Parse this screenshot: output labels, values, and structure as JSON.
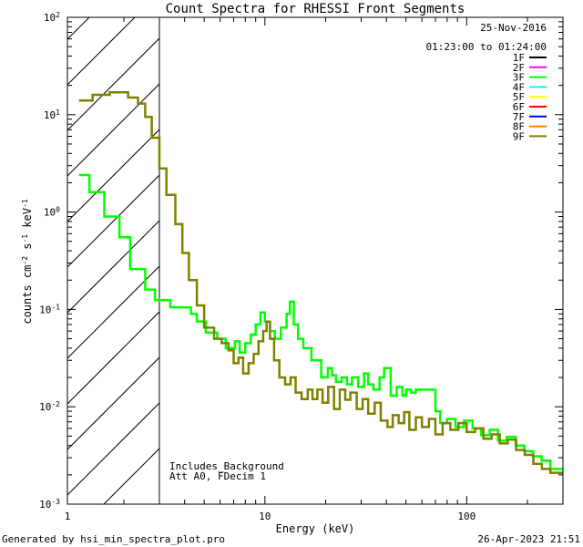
{
  "chart_data": {
    "type": "line",
    "title": "Count Spectra for RHESSI Front Segments",
    "xlabel": "Energy (keV)",
    "ylabel": "counts cm",
    "ylabel_sup1": "-2",
    "ylabel_mid": " s",
    "ylabel_sup2": "-1",
    "ylabel_end": " keV",
    "ylabel_sup3": "-1",
    "xscale": "log",
    "yscale": "log",
    "xlim": [
      1.05,
      300
    ],
    "ylim": [
      0.001,
      100
    ],
    "x_ticks": [
      {
        "value": 1,
        "label": "1"
      },
      {
        "value": 10,
        "label": "10"
      },
      {
        "value": 100,
        "label": "100"
      }
    ],
    "y_ticks": [
      {
        "exp": -3,
        "label": "10",
        "sup": "-3"
      },
      {
        "exp": -2,
        "label": "10",
        "sup": "-2"
      },
      {
        "exp": -1,
        "label": "10",
        "sup": "-1"
      },
      {
        "exp": 0,
        "label": "10",
        "sup": "0"
      },
      {
        "exp": 1,
        "label": "10",
        "sup": "1"
      },
      {
        "exp": 2,
        "label": "10",
        "sup": "2"
      }
    ],
    "shaded_region_max_energy": 3.0,
    "date": "25-Nov-2016",
    "time_range": "01:23:00 to 01:24:00",
    "legend": [
      {
        "name": "1F",
        "color": "#000000"
      },
      {
        "name": "2F",
        "color": "#ff00ff"
      },
      {
        "name": "3F",
        "color": "#00ff00"
      },
      {
        "name": "4F",
        "color": "#00ffff"
      },
      {
        "name": "5F",
        "color": "#ffff00"
      },
      {
        "name": "6F",
        "color": "#ff0000"
      },
      {
        "name": "7F",
        "color": "#0000ff"
      },
      {
        "name": "8F",
        "color": "#ff8000"
      },
      {
        "name": "9F",
        "color": "#808000"
      }
    ],
    "annotations": [
      "Includes_Background",
      "Att A0, FDecim 1"
    ],
    "series": [
      {
        "name": "3F",
        "color": "#00ff00",
        "points": [
          [
            1.2,
            2.4
          ],
          [
            1.35,
            2.4
          ],
          [
            1.35,
            1.6
          ],
          [
            1.6,
            1.6
          ],
          [
            1.6,
            0.9
          ],
          [
            1.9,
            0.9
          ],
          [
            1.9,
            0.55
          ],
          [
            2.15,
            0.55
          ],
          [
            2.15,
            0.26
          ],
          [
            2.55,
            0.26
          ],
          [
            2.55,
            0.16
          ],
          [
            2.85,
            0.16
          ],
          [
            2.85,
            0.125
          ],
          [
            3.4,
            0.125
          ],
          [
            3.4,
            0.105
          ],
          [
            4.3,
            0.105
          ],
          [
            4.3,
            0.09
          ],
          [
            4.6,
            0.09
          ],
          [
            4.6,
            0.075
          ],
          [
            5.1,
            0.075
          ],
          [
            5.1,
            0.058
          ],
          [
            5.8,
            0.058
          ],
          [
            5.8,
            0.05
          ],
          [
            6.4,
            0.05
          ],
          [
            6.4,
            0.04
          ],
          [
            7.1,
            0.04
          ],
          [
            7.1,
            0.047
          ],
          [
            7.5,
            0.047
          ],
          [
            7.5,
            0.036
          ],
          [
            8.0,
            0.036
          ],
          [
            8.0,
            0.045
          ],
          [
            8.5,
            0.045
          ],
          [
            8.5,
            0.055
          ],
          [
            9.0,
            0.055
          ],
          [
            9.0,
            0.07
          ],
          [
            9.5,
            0.07
          ],
          [
            9.5,
            0.093
          ],
          [
            10.0,
            0.093
          ],
          [
            10.0,
            0.075
          ],
          [
            10.6,
            0.075
          ],
          [
            10.6,
            0.06
          ],
          [
            11.2,
            0.06
          ],
          [
            11.2,
            0.05
          ],
          [
            12.0,
            0.05
          ],
          [
            12.0,
            0.065
          ],
          [
            12.8,
            0.065
          ],
          [
            12.8,
            0.09
          ],
          [
            13.3,
            0.09
          ],
          [
            13.3,
            0.12
          ],
          [
            13.9,
            0.12
          ],
          [
            13.9,
            0.07
          ],
          [
            14.6,
            0.07
          ],
          [
            14.6,
            0.05
          ],
          [
            15.5,
            0.05
          ],
          [
            15.5,
            0.04
          ],
          [
            17.0,
            0.04
          ],
          [
            17.0,
            0.03
          ],
          [
            19.0,
            0.03
          ],
          [
            19.0,
            0.02
          ],
          [
            20.5,
            0.02
          ],
          [
            20.5,
            0.025
          ],
          [
            21.5,
            0.025
          ],
          [
            21.5,
            0.021
          ],
          [
            22.5,
            0.021
          ],
          [
            22.5,
            0.018
          ],
          [
            24.0,
            0.018
          ],
          [
            24.0,
            0.02
          ],
          [
            25.5,
            0.02
          ],
          [
            25.5,
            0.017
          ],
          [
            27.0,
            0.017
          ],
          [
            27.0,
            0.02
          ],
          [
            29.0,
            0.02
          ],
          [
            29.0,
            0.016
          ],
          [
            31.0,
            0.016
          ],
          [
            31.0,
            0.022
          ],
          [
            32.5,
            0.022
          ],
          [
            32.5,
            0.017
          ],
          [
            34.5,
            0.017
          ],
          [
            34.5,
            0.015
          ],
          [
            37.0,
            0.015
          ],
          [
            37.0,
            0.02
          ],
          [
            39.0,
            0.02
          ],
          [
            39.0,
            0.025
          ],
          [
            42.0,
            0.025
          ],
          [
            42.0,
            0.013
          ],
          [
            45.0,
            0.013
          ],
          [
            45.0,
            0.016
          ],
          [
            48.0,
            0.016
          ],
          [
            48.0,
            0.013
          ],
          [
            50.0,
            0.013
          ],
          [
            50.0,
            0.015
          ],
          [
            53.0,
            0.015
          ],
          [
            53.0,
            0.014
          ],
          [
            56.0,
            0.014
          ],
          [
            56.0,
            0.015
          ],
          [
            70.0,
            0.015
          ],
          [
            70.0,
            0.009
          ],
          [
            74.0,
            0.009
          ],
          [
            74.0,
            0.0068
          ],
          [
            80.0,
            0.0068
          ],
          [
            80.0,
            0.0075
          ],
          [
            88.0,
            0.0075
          ],
          [
            88.0,
            0.0062
          ],
          [
            97.0,
            0.0062
          ],
          [
            97.0,
            0.0072
          ],
          [
            107.0,
            0.0072
          ],
          [
            107.0,
            0.006
          ],
          [
            118.0,
            0.006
          ],
          [
            118.0,
            0.0051
          ],
          [
            130.0,
            0.0051
          ],
          [
            130.0,
            0.0058
          ],
          [
            143.0,
            0.0058
          ],
          [
            143.0,
            0.0045
          ],
          [
            158.0,
            0.0045
          ],
          [
            158.0,
            0.0049
          ],
          [
            175.0,
            0.0049
          ],
          [
            175.0,
            0.004
          ],
          [
            193.0,
            0.004
          ],
          [
            193.0,
            0.0035
          ],
          [
            213.0,
            0.0035
          ],
          [
            213.0,
            0.0031
          ],
          [
            235.0,
            0.0031
          ],
          [
            235.0,
            0.0028
          ],
          [
            260.0,
            0.0028
          ],
          [
            260.0,
            0.0023
          ],
          [
            300.0,
            0.0023
          ]
        ]
      },
      {
        "name": "9F",
        "color": "#808000",
        "points": [
          [
            1.2,
            14.0
          ],
          [
            1.4,
            14.0
          ],
          [
            1.4,
            16.0
          ],
          [
            1.7,
            16.0
          ],
          [
            1.7,
            17.0
          ],
          [
            2.1,
            17.0
          ],
          [
            2.1,
            15.0
          ],
          [
            2.35,
            15.0
          ],
          [
            2.35,
            13.0
          ],
          [
            2.55,
            13.0
          ],
          [
            2.55,
            9.5
          ],
          [
            2.75,
            9.5
          ],
          [
            2.75,
            5.8
          ],
          [
            3.0,
            5.8
          ],
          [
            3.0,
            2.8
          ],
          [
            3.25,
            2.8
          ],
          [
            3.25,
            1.5
          ],
          [
            3.6,
            1.5
          ],
          [
            3.6,
            0.75
          ],
          [
            3.9,
            0.75
          ],
          [
            3.9,
            0.38
          ],
          [
            4.2,
            0.38
          ],
          [
            4.2,
            0.2
          ],
          [
            4.6,
            0.2
          ],
          [
            4.6,
            0.11
          ],
          [
            5.0,
            0.11
          ],
          [
            5.0,
            0.065
          ],
          [
            5.6,
            0.065
          ],
          [
            5.6,
            0.05
          ],
          [
            6.1,
            0.05
          ],
          [
            6.1,
            0.045
          ],
          [
            6.6,
            0.045
          ],
          [
            6.6,
            0.038
          ],
          [
            7.0,
            0.038
          ],
          [
            7.0,
            0.028
          ],
          [
            7.4,
            0.028
          ],
          [
            7.4,
            0.032
          ],
          [
            7.8,
            0.032
          ],
          [
            7.8,
            0.022
          ],
          [
            8.3,
            0.022
          ],
          [
            8.3,
            0.028
          ],
          [
            8.8,
            0.028
          ],
          [
            8.8,
            0.035
          ],
          [
            9.3,
            0.035
          ],
          [
            9.3,
            0.047
          ],
          [
            9.8,
            0.047
          ],
          [
            9.8,
            0.06
          ],
          [
            10.2,
            0.06
          ],
          [
            10.2,
            0.075
          ],
          [
            10.6,
            0.075
          ],
          [
            10.6,
            0.05
          ],
          [
            11.1,
            0.05
          ],
          [
            11.1,
            0.03
          ],
          [
            11.8,
            0.03
          ],
          [
            11.8,
            0.02
          ],
          [
            12.6,
            0.02
          ],
          [
            12.6,
            0.017
          ],
          [
            13.4,
            0.017
          ],
          [
            13.4,
            0.02
          ],
          [
            14.2,
            0.02
          ],
          [
            14.2,
            0.014
          ],
          [
            15.2,
            0.014
          ],
          [
            15.2,
            0.012
          ],
          [
            16.3,
            0.012
          ],
          [
            16.3,
            0.015
          ],
          [
            17.2,
            0.015
          ],
          [
            17.2,
            0.012
          ],
          [
            18.2,
            0.012
          ],
          [
            18.2,
            0.015
          ],
          [
            19.3,
            0.015
          ],
          [
            19.3,
            0.011
          ],
          [
            20.6,
            0.011
          ],
          [
            20.6,
            0.016
          ],
          [
            22.0,
            0.016
          ],
          [
            22.0,
            0.0095
          ],
          [
            23.5,
            0.0095
          ],
          [
            23.5,
            0.015
          ],
          [
            25.0,
            0.015
          ],
          [
            25.0,
            0.0118
          ],
          [
            26.5,
            0.0118
          ],
          [
            26.5,
            0.014
          ],
          [
            28.5,
            0.014
          ],
          [
            28.5,
            0.0095
          ],
          [
            30.5,
            0.0095
          ],
          [
            30.5,
            0.012
          ],
          [
            32.5,
            0.012
          ],
          [
            32.5,
            0.0085
          ],
          [
            35.0,
            0.0085
          ],
          [
            35.0,
            0.011
          ],
          [
            37.5,
            0.011
          ],
          [
            37.5,
            0.0072
          ],
          [
            40.5,
            0.0072
          ],
          [
            40.5,
            0.0062
          ],
          [
            43.0,
            0.0062
          ],
          [
            43.0,
            0.0082
          ],
          [
            46.0,
            0.0082
          ],
          [
            46.0,
            0.0068
          ],
          [
            49.0,
            0.0068
          ],
          [
            49.0,
            0.0088
          ],
          [
            52.0,
            0.0088
          ],
          [
            52.0,
            0.0058
          ],
          [
            56.0,
            0.0058
          ],
          [
            56.0,
            0.0078
          ],
          [
            60.0,
            0.0078
          ],
          [
            60.0,
            0.0062
          ],
          [
            65.0,
            0.0062
          ],
          [
            65.0,
            0.0075
          ],
          [
            70.0,
            0.0075
          ],
          [
            70.0,
            0.0052
          ],
          [
            76.0,
            0.0052
          ],
          [
            76.0,
            0.0068
          ],
          [
            83.0,
            0.0068
          ],
          [
            83.0,
            0.0058
          ],
          [
            91.0,
            0.0058
          ],
          [
            91.0,
            0.0068
          ],
          [
            100.0,
            0.0068
          ],
          [
            100.0,
            0.0055
          ],
          [
            110.0,
            0.0055
          ],
          [
            110.0,
            0.006
          ],
          [
            121.0,
            0.006
          ],
          [
            121.0,
            0.0047
          ],
          [
            133.0,
            0.0047
          ],
          [
            133.0,
            0.0052
          ],
          [
            146.0,
            0.0052
          ],
          [
            146.0,
            0.0042
          ],
          [
            160.0,
            0.0042
          ],
          [
            160.0,
            0.0046
          ],
          [
            176.0,
            0.0046
          ],
          [
            176.0,
            0.0036
          ],
          [
            194.0,
            0.0036
          ],
          [
            194.0,
            0.0032
          ],
          [
            214.0,
            0.0032
          ],
          [
            214.0,
            0.0026
          ],
          [
            236.0,
            0.0026
          ],
          [
            236.0,
            0.0023
          ],
          [
            260.0,
            0.0023
          ],
          [
            260.0,
            0.0021
          ],
          [
            300.0,
            0.0021
          ]
        ]
      }
    ]
  },
  "footer": {
    "left": "Generated by hsi_min_spectra_plot.pro",
    "right": "26-Apr-2023 21:51"
  }
}
